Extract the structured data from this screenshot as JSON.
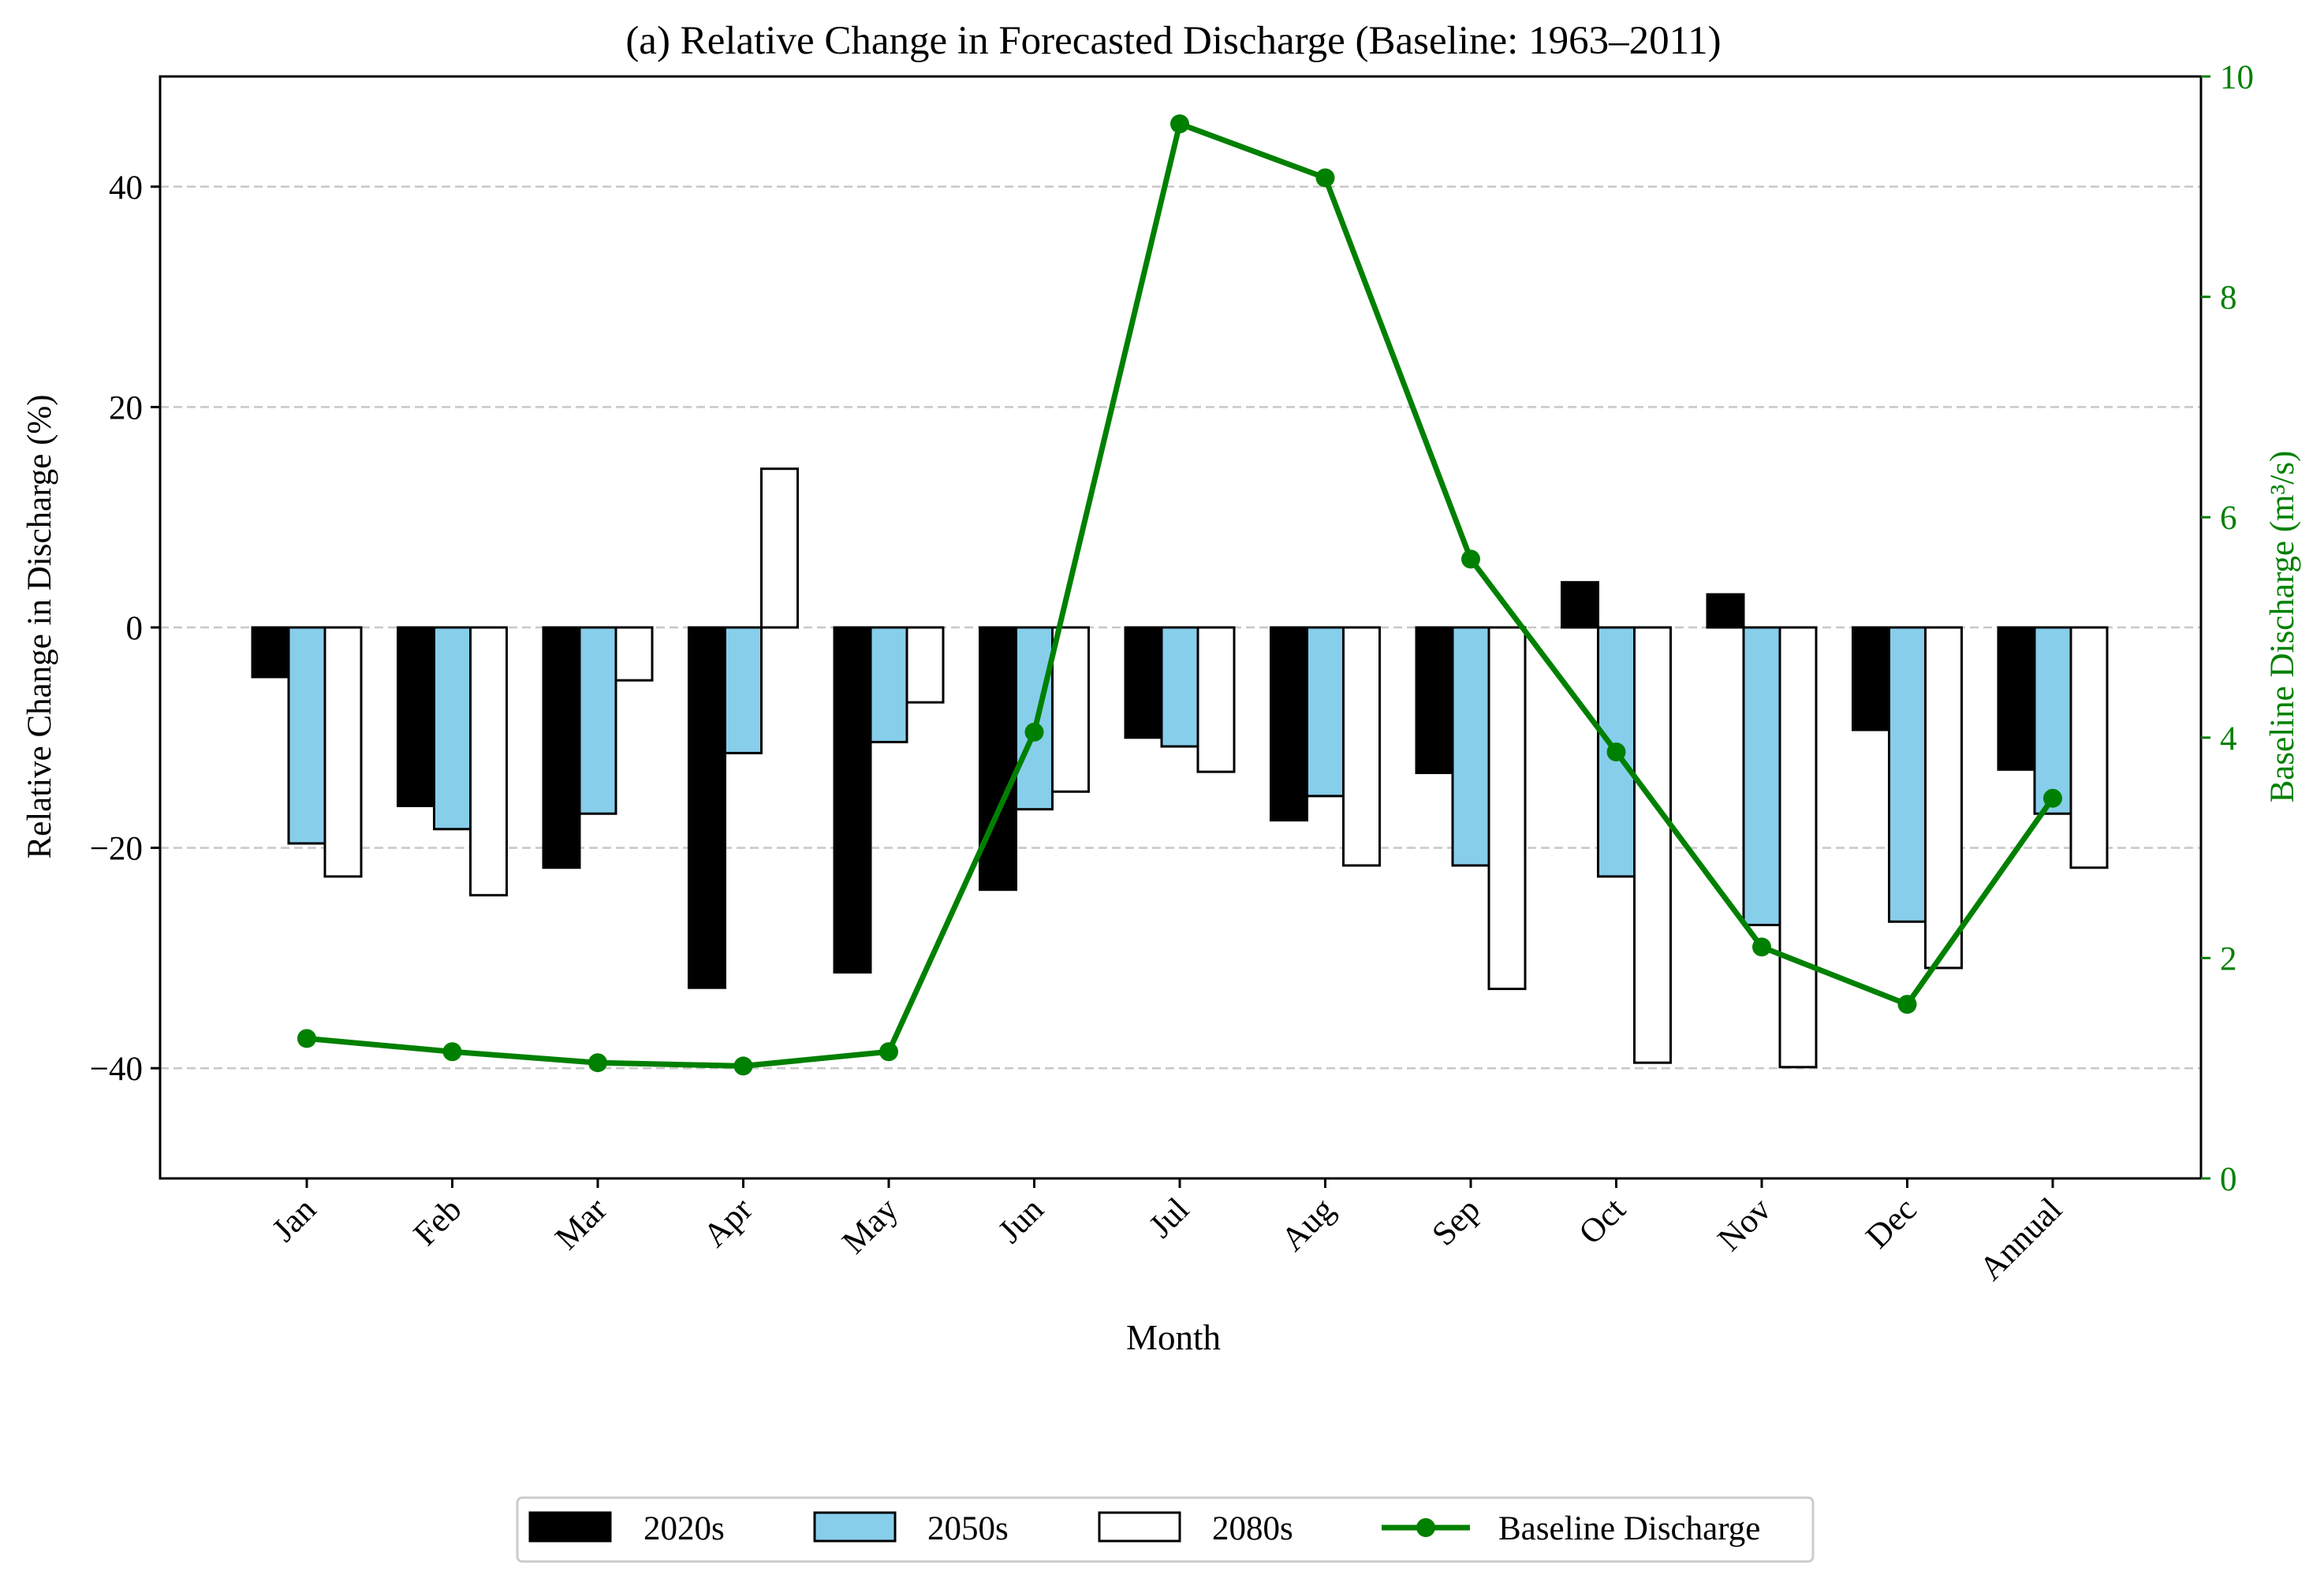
{
  "chart_data": {
    "type": "bar",
    "title": "(a) Relative Change in Forecasted Discharge (Baseline: 1963–2011)",
    "xlabel": "Month",
    "ylabel": "Relative Change in Discharge (%)",
    "y2label": "Baseline Discharge (m³/s)",
    "categories": [
      "Jan",
      "Feb",
      "Mar",
      "Apr",
      "May",
      "Jun",
      "Jul",
      "Aug",
      "Sep",
      "Oct",
      "Nov",
      "Dec",
      "Annual"
    ],
    "ylim": [
      -50,
      50
    ],
    "yticks": [
      -40,
      -20,
      0,
      20,
      40
    ],
    "ytick_labels": [
      "−40",
      "−20",
      "0",
      "20",
      "40"
    ],
    "y2lim": [
      0,
      10
    ],
    "y2ticks": [
      0,
      2,
      4,
      6,
      8,
      10
    ],
    "y2tick_labels": [
      "0",
      "2",
      "4",
      "6",
      "8",
      "10"
    ],
    "grid": "horizontal dashed",
    "legend_position": "bottom-center, below chart",
    "series": [
      {
        "name": "2020s",
        "kind": "bar",
        "color": "#000000",
        "values": [
          -4.5,
          -16.2,
          -21.8,
          -32.7,
          -31.3,
          -23.8,
          -10.0,
          -17.5,
          -13.2,
          4.1,
          3.0,
          -9.3,
          -12.9
        ]
      },
      {
        "name": "2050s",
        "kind": "bar",
        "color": "#87CEEB",
        "values": [
          -19.6,
          -18.3,
          -16.9,
          -11.4,
          -10.4,
          -16.5,
          -10.8,
          -15.3,
          -21.6,
          -22.6,
          -27.0,
          -26.7,
          -16.9
        ]
      },
      {
        "name": "2080s",
        "kind": "bar",
        "color": "#FFFFFF",
        "values": [
          -22.6,
          -24.3,
          -4.8,
          14.4,
          -6.8,
          -14.9,
          -13.1,
          -21.6,
          -32.8,
          -39.5,
          -39.9,
          -30.9,
          -21.8
        ]
      },
      {
        "name": "Baseline Discharge",
        "kind": "line",
        "axis": "right",
        "color": "#008000",
        "values": [
          1.27,
          1.15,
          1.05,
          1.02,
          1.15,
          4.05,
          9.57,
          9.08,
          5.62,
          3.87,
          2.1,
          1.58,
          3.45
        ]
      }
    ]
  }
}
